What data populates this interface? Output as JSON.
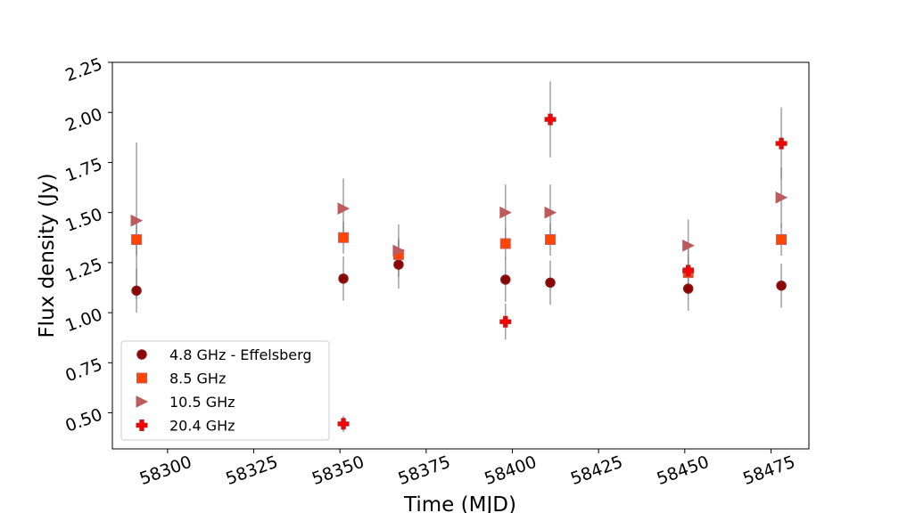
{
  "chart_data": {
    "type": "scatter",
    "title": "",
    "xlabel": "Time (MJD)",
    "ylabel": "Flux density (Jy)",
    "xlim": [
      58284,
      58486
    ],
    "ylim": [
      0.32,
      2.25
    ],
    "xticks": [
      58300,
      58325,
      58350,
      58375,
      58400,
      58425,
      58450,
      58475
    ],
    "xtick_labels": [
      "58300",
      "58325",
      "58350",
      "58375",
      "58400",
      "58425",
      "58450",
      "58475"
    ],
    "yticks": [
      0.5,
      0.75,
      1.0,
      1.25,
      1.5,
      1.75,
      2.0,
      2.25
    ],
    "ytick_labels": [
      "0.50",
      "0.75",
      "1.00",
      "1.25",
      "1.50",
      "1.75",
      "2.00",
      "2.25"
    ],
    "legend_position": "lower-left",
    "series": [
      {
        "name": "4.8 GHz - Effelsberg",
        "marker": "circle",
        "color": "#8b0000",
        "edge_color": "#8b1a1a",
        "x": [
          58291,
          58351,
          58367,
          58398,
          58411,
          58451,
          58478
        ],
        "y": [
          1.11,
          1.17,
          1.24,
          1.165,
          1.15,
          1.12,
          1.135
        ],
        "err": [
          0.11,
          0.11,
          0.12,
          0.11,
          0.11,
          0.11,
          0.11
        ]
      },
      {
        "name": "8.5 GHz",
        "marker": "square",
        "color": "#ff4500",
        "edge_color": "#cd5c5c",
        "x": [
          58291,
          58351,
          58367,
          58398,
          58411,
          58451,
          58478
        ],
        "y": [
          1.365,
          1.375,
          1.29,
          1.345,
          1.365,
          1.2,
          1.365
        ],
        "err": [
          0.08,
          0.08,
          0.08,
          0.08,
          0.08,
          0.08,
          0.08
        ]
      },
      {
        "name": "10.5 GHz",
        "marker": "triangle-right",
        "color": "#bc5b5b",
        "edge_color": "#bc5b5b",
        "x": [
          58291,
          58351,
          58367,
          58398,
          58411,
          58451,
          58478
        ],
        "y": [
          1.46,
          1.52,
          1.31,
          1.5,
          1.5,
          1.335,
          1.575
        ],
        "err": [
          0.39,
          0.15,
          0.13,
          0.14,
          0.14,
          0.13,
          0.15
        ]
      },
      {
        "name": "20.4 GHz",
        "marker": "plus",
        "color": "#ff0000",
        "edge_color": "#b22222",
        "x": [
          58351,
          58398,
          58411,
          58451,
          58478
        ],
        "y": [
          0.445,
          0.955,
          1.965,
          1.21,
          1.845
        ],
        "err": [
          0.04,
          0.09,
          0.19,
          0.12,
          0.18
        ]
      }
    ]
  }
}
